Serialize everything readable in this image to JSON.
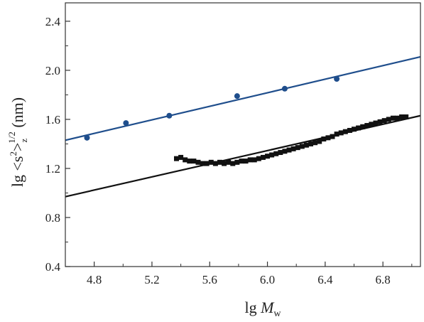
{
  "chart_data": {
    "type": "scatter",
    "xlabel": "lg M_w",
    "ylabel": "lg <s²>z^1/2 (nm)",
    "xlabel_parts": {
      "lg": "lg ",
      "M": "M",
      "w": "w"
    },
    "ylabel_parts": {
      "lg": "lg <s",
      "sq": "2",
      "gt": ">",
      "z": "z",
      "half": "1/2",
      "unit": " (nm)"
    },
    "xlim": [
      4.6,
      7.06
    ],
    "ylim": [
      0.4,
      2.55
    ],
    "xticks": [
      4.8,
      5.2,
      5.6,
      6.0,
      6.4,
      6.8
    ],
    "xtick_labels": [
      "4.8",
      "5.2",
      "5.6",
      "6.0",
      "6.4",
      "6.8"
    ],
    "yticks": [
      0.4,
      0.8,
      1.2,
      1.6,
      2.0,
      2.4
    ],
    "ytick_labels": [
      "0.4",
      "0.8",
      "1.2",
      "1.6",
      "2.0",
      "2.4"
    ],
    "series": [
      {
        "marker": "circle",
        "color": "#1f4e8c",
        "x": [
          4.75,
          5.02,
          5.32,
          5.79,
          6.12,
          6.48
        ],
        "y": [
          1.45,
          1.57,
          1.63,
          1.79,
          1.85,
          1.93
        ]
      },
      {
        "marker": "square",
        "color": "#111111",
        "x": [
          5.37,
          5.4,
          5.43,
          5.46,
          5.49,
          5.52,
          5.55,
          5.58,
          5.61,
          5.64,
          5.67,
          5.7,
          5.73,
          5.76,
          5.79,
          5.82,
          5.85,
          5.88,
          5.91,
          5.94,
          5.97,
          6.0,
          6.03,
          6.06,
          6.09,
          6.12,
          6.15,
          6.18,
          6.21,
          6.24,
          6.27,
          6.3,
          6.33,
          6.36,
          6.39,
          6.42,
          6.45,
          6.48,
          6.51,
          6.54,
          6.57,
          6.6,
          6.63,
          6.66,
          6.69,
          6.72,
          6.75,
          6.78,
          6.81,
          6.84,
          6.87,
          6.9,
          6.93,
          6.96
        ],
        "y": [
          1.28,
          1.29,
          1.27,
          1.26,
          1.26,
          1.25,
          1.24,
          1.24,
          1.25,
          1.24,
          1.25,
          1.24,
          1.25,
          1.24,
          1.25,
          1.26,
          1.26,
          1.27,
          1.27,
          1.28,
          1.29,
          1.3,
          1.31,
          1.32,
          1.33,
          1.34,
          1.35,
          1.36,
          1.37,
          1.38,
          1.39,
          1.4,
          1.41,
          1.42,
          1.44,
          1.45,
          1.46,
          1.48,
          1.49,
          1.5,
          1.51,
          1.52,
          1.53,
          1.54,
          1.55,
          1.56,
          1.57,
          1.58,
          1.59,
          1.6,
          1.61,
          1.61,
          1.62,
          1.62
        ]
      }
    ],
    "fit_lines": [
      {
        "color": "#1f4e8c",
        "x": [
          4.6,
          7.06
        ],
        "y": [
          1.43,
          2.11
        ]
      },
      {
        "color": "#111111",
        "x": [
          4.6,
          7.06
        ],
        "y": [
          0.97,
          1.63
        ]
      }
    ]
  }
}
